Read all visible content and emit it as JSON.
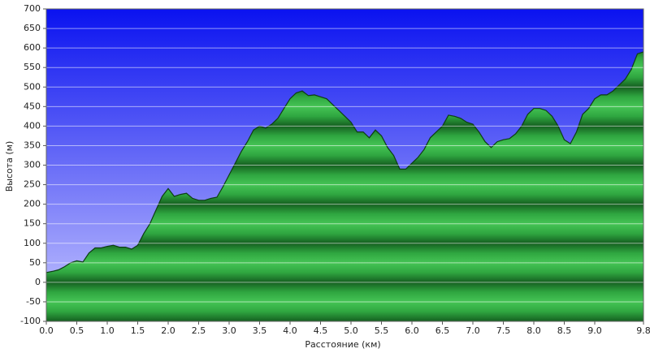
{
  "chart_data": {
    "type": "area",
    "xlabel": "Расстояние  (км)",
    "ylabel": "Высота  (м)",
    "x": [
      0.0,
      0.1,
      0.2,
      0.3,
      0.4,
      0.5,
      0.6,
      0.7,
      0.8,
      0.9,
      1.0,
      1.1,
      1.2,
      1.3,
      1.4,
      1.5,
      1.6,
      1.7,
      1.8,
      1.9,
      2.0,
      2.1,
      2.2,
      2.3,
      2.4,
      2.5,
      2.6,
      2.7,
      2.8,
      2.9,
      3.0,
      3.1,
      3.2,
      3.3,
      3.4,
      3.5,
      3.6,
      3.7,
      3.8,
      3.9,
      4.0,
      4.1,
      4.2,
      4.3,
      4.4,
      4.5,
      4.6,
      4.7,
      4.8,
      4.9,
      5.0,
      5.1,
      5.2,
      5.3,
      5.4,
      5.5,
      5.6,
      5.7,
      5.8,
      5.9,
      6.0,
      6.1,
      6.2,
      6.3,
      6.4,
      6.5,
      6.6,
      6.7,
      6.8,
      6.9,
      7.0,
      7.1,
      7.2,
      7.3,
      7.4,
      7.5,
      7.6,
      7.7,
      7.8,
      7.9,
      8.0,
      8.1,
      8.2,
      8.3,
      8.4,
      8.5,
      8.6,
      8.7,
      8.8,
      8.9,
      9.0,
      9.1,
      9.2,
      9.3,
      9.4,
      9.5,
      9.6,
      9.7,
      9.8
    ],
    "values": [
      25,
      28,
      32,
      40,
      50,
      55,
      52,
      75,
      88,
      88,
      92,
      95,
      90,
      90,
      85,
      95,
      125,
      150,
      185,
      220,
      240,
      220,
      225,
      228,
      215,
      210,
      210,
      215,
      218,
      245,
      275,
      305,
      335,
      360,
      390,
      400,
      395,
      405,
      420,
      445,
      470,
      485,
      490,
      478,
      480,
      475,
      470,
      455,
      440,
      425,
      410,
      385,
      385,
      370,
      390,
      375,
      345,
      325,
      290,
      290,
      305,
      320,
      340,
      370,
      385,
      400,
      428,
      425,
      420,
      410,
      405,
      385,
      360,
      345,
      360,
      365,
      368,
      380,
      400,
      430,
      445,
      445,
      440,
      425,
      400,
      365,
      355,
      385,
      430,
      445,
      470,
      480,
      480,
      490,
      505,
      520,
      545,
      585,
      590
    ],
    "color": "#2a9a3a",
    "xlim": [
      0,
      9.8
    ],
    "ylim": [
      -100,
      700
    ],
    "xticks": [
      {
        "value": 0,
        "label": "0.0"
      },
      0.5,
      {
        "value": 1,
        "label": "1.0"
      },
      1.5,
      {
        "value": 2,
        "label": "2.0"
      },
      2.5,
      {
        "value": 3,
        "label": "3.0"
      },
      3.5,
      {
        "value": 4,
        "label": "4.0"
      },
      4.5,
      {
        "value": 5,
        "label": "5.0"
      },
      5.5,
      {
        "value": 6,
        "label": "6.0"
      },
      6.5,
      {
        "value": 7,
        "label": "7.0"
      },
      7.5,
      {
        "value": 8,
        "label": "8.0"
      },
      8.5,
      {
        "value": 9,
        "label": "9.0"
      },
      9.8
    ],
    "yticks": [
      -100,
      -50,
      0,
      50,
      100,
      150,
      200,
      250,
      300,
      350,
      400,
      450,
      500,
      550,
      600,
      650,
      700
    ],
    "grid": true
  }
}
